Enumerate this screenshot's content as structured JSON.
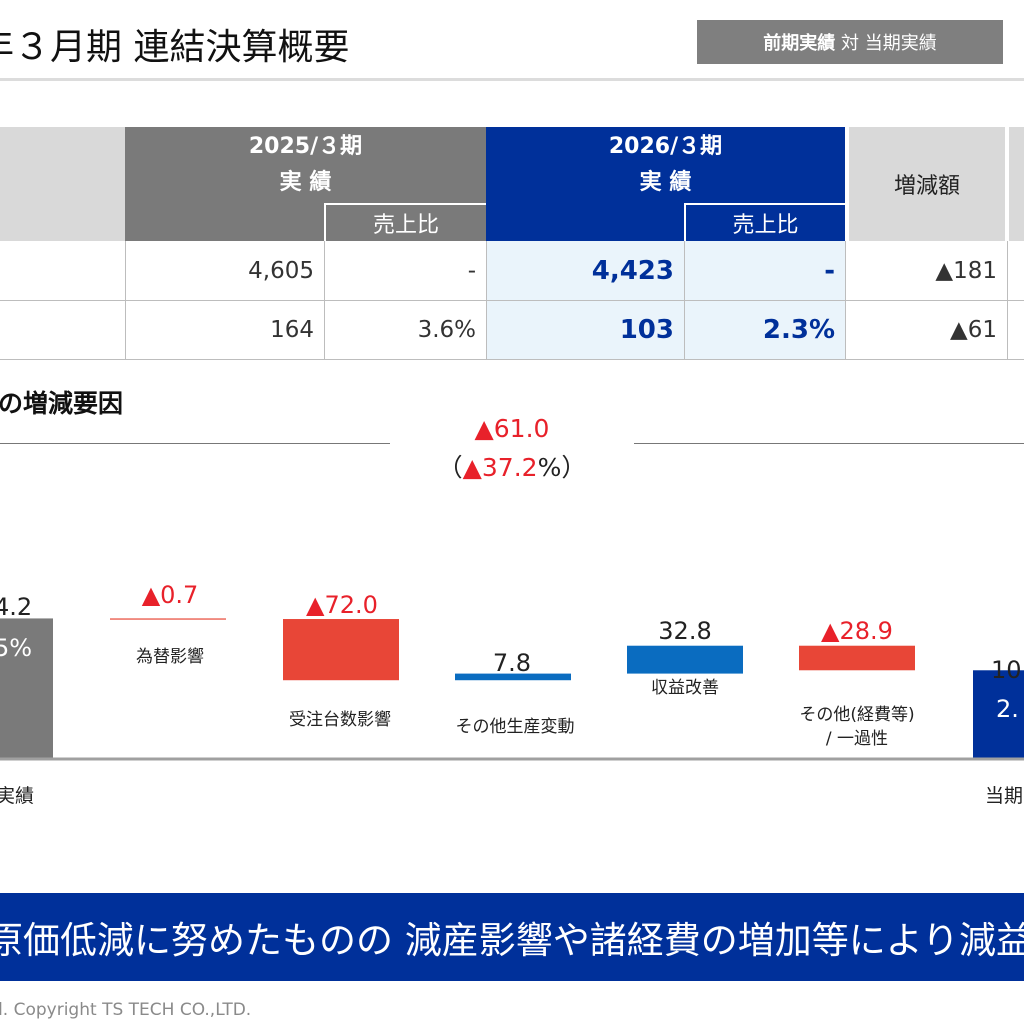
{
  "header": {
    "title": "年３月期 連結決算概要",
    "compare_bold": "前期実績",
    "compare_mid": " 対 ",
    "compare_rest": "当期実績"
  },
  "table": {
    "prev_period": "2025/３期",
    "prev_actual": "実 績",
    "curr_period": "2026/３期",
    "curr_actual": "実 績",
    "ratio_label": "売上比",
    "diff_label": "増減額",
    "rows": [
      {
        "prev": "4,605",
        "prev_ratio": "-",
        "curr": "4,423",
        "curr_ratio": "-",
        "diff": "▲181"
      },
      {
        "prev": "164",
        "prev_ratio": "3.6%",
        "curr": "103",
        "curr_ratio": "2.3%",
        "diff": "▲61"
      }
    ]
  },
  "section": {
    "title": "の増減要因",
    "total_change": "▲61.0",
    "total_change_pct_open": "（",
    "total_change_pct": "▲37.2",
    "total_change_pct_close": "%）"
  },
  "chart_data": {
    "type": "bar",
    "title": "",
    "categories": [
      "実績",
      "為替影響",
      "受注台数影響",
      "その他生産変動",
      "収益改善",
      "その他(経費等)/一過性",
      "当期"
    ],
    "values": [
      164.2,
      -0.7,
      -72.0,
      7.8,
      32.8,
      -28.9,
      103.2
    ],
    "start_label": "4.2",
    "start_ratio": "5%",
    "end_label": "10",
    "end_ratio": "2.",
    "labels": [
      "▲0.7",
      "▲72.0",
      "7.8",
      "32.8",
      "▲28.9"
    ],
    "cat_labels": [
      "為替影響",
      "受注台数影響",
      "その他生産変動",
      "収益改善",
      "その他(経費等)",
      "/ 一過性"
    ],
    "start_cat": "実績",
    "end_cat": "当期",
    "colors": {
      "start": "#7a7a7a",
      "decrease": "#e84637",
      "increase": "#0a6cc0",
      "end": "#00309a"
    }
  },
  "banner": {
    "text": "原価低減に努めたものの 減産影響や諸経費の増加等により減益"
  },
  "footer": {
    "copyright": "d. Copyright TS TECH CO.,LTD."
  }
}
